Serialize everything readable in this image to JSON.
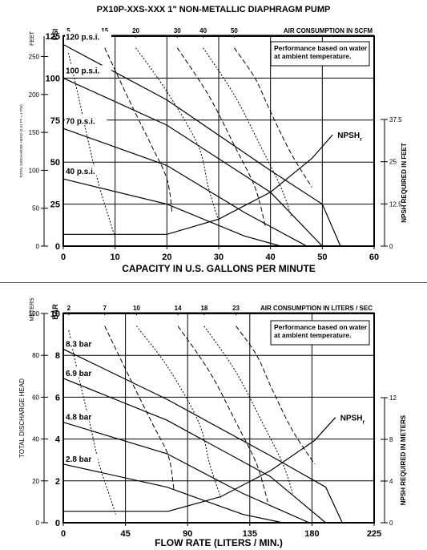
{
  "title": "PX10P-XXS-XXX   1\" NON-METALLIC DIAPHRAGM PUMP",
  "colors": {
    "ink": "#000000",
    "paper": "#ffffff"
  },
  "chart_data": [
    {
      "type": "line",
      "units": "US",
      "x_label": "CAPACITY IN U.S. GALLONS PER MINUTE",
      "x_range": [
        0,
        60
      ],
      "x_ticks": [
        "0",
        "10",
        "20",
        "30",
        "40",
        "50",
        "60"
      ],
      "left_outer_unit": "FEET",
      "left_outer_range": [
        0,
        277
      ],
      "left_outer_ticks": [
        "0",
        "50",
        "100",
        "150",
        "200",
        "250"
      ],
      "left_inner_unit": "PSI",
      "left_inner_range": [
        0,
        125
      ],
      "left_inner_ticks": [
        "0",
        "25",
        "50",
        "75",
        "100",
        "125"
      ],
      "left_axis_label": "TOTAL DISCHARGE HEAD (2.31 FT = 1 PSI)",
      "right_label": "NPSH REQUIRED IN FEET",
      "right_range": [
        0,
        37.5
      ],
      "right_ticks": [
        "0",
        "12.5",
        "25",
        "37.5"
      ],
      "air_label": "AIR CONSUMPTION IN SCFM",
      "air_ticks": [
        "5",
        "15",
        "20",
        "30",
        "40",
        "50"
      ],
      "note": [
        "Performance based on water",
        "at ambient temperature."
      ],
      "npsh_label": "NPSH",
      "npsh_sub": "r",
      "series": [
        {
          "name": "120 p.s.i.",
          "points": [
            [
              0,
              120
            ],
            [
              20,
              87
            ],
            [
              40,
              45
            ],
            [
              50,
              25
            ],
            [
              53.5,
              0
            ]
          ]
        },
        {
          "name": "100 p.s.i.",
          "points": [
            [
              0,
              100
            ],
            [
              20,
              72
            ],
            [
              40,
              32
            ],
            [
              50,
              0
            ]
          ]
        },
        {
          "name": "70 p.s.i.",
          "points": [
            [
              0,
              70
            ],
            [
              20,
              48
            ],
            [
              35,
              20
            ],
            [
              47,
              0
            ]
          ]
        },
        {
          "name": "40 p.s.i.",
          "points": [
            [
              0,
              40
            ],
            [
              20,
              25
            ],
            [
              35,
              6
            ],
            [
              42,
              0
            ]
          ]
        }
      ],
      "npsh_curve": [
        [
          0,
          3.5
        ],
        [
          10,
          3.5
        ],
        [
          20,
          3.5
        ],
        [
          30,
          8
        ],
        [
          40,
          16
        ],
        [
          48,
          26
        ],
        [
          52,
          33
        ]
      ],
      "air_curves": [
        {
          "label": "5",
          "points": [
            [
              1,
              115
            ],
            [
              3,
              88
            ],
            [
              5,
              60
            ],
            [
              7,
              35
            ],
            [
              9,
              15
            ],
            [
              10,
              5
            ]
          ]
        },
        {
          "label": "15",
          "points": [
            [
              8,
              118
            ],
            [
              13,
              85
            ],
            [
              17,
              60
            ],
            [
              20,
              40
            ],
            [
              21,
              20
            ]
          ]
        },
        {
          "label": "20",
          "points": [
            [
              14,
              118
            ],
            [
              20,
              92
            ],
            [
              26,
              60
            ],
            [
              28,
              35
            ],
            [
              30,
              15
            ]
          ]
        },
        {
          "label": "30",
          "points": [
            [
              22,
              118
            ],
            [
              28,
              90
            ],
            [
              33,
              60
            ],
            [
              37,
              35
            ],
            [
              39,
              12
            ]
          ]
        },
        {
          "label": "40",
          "points": [
            [
              27,
              118
            ],
            [
              33,
              90
            ],
            [
              38,
              60
            ],
            [
              42,
              35
            ],
            [
              44,
              18
            ]
          ]
        },
        {
          "label": "50",
          "points": [
            [
              33,
              118
            ],
            [
              37,
              100
            ],
            [
              40,
              80
            ],
            [
              44,
              55
            ],
            [
              48,
              35
            ]
          ]
        }
      ]
    },
    {
      "type": "line",
      "units": "metric",
      "x_label": "FLOW RATE (LITERS / MIN.)",
      "x_range": [
        0,
        225
      ],
      "x_ticks": [
        "0",
        "45",
        "90",
        "135",
        "180",
        "225"
      ],
      "left_outer_unit": "METERS",
      "left_outer_range": [
        0,
        100
      ],
      "left_outer_ticks": [
        "0",
        "20",
        "40",
        "60",
        "80",
        "100"
      ],
      "left_inner_unit": "BAR",
      "left_inner_range": [
        0,
        10
      ],
      "left_inner_ticks": [
        "0",
        "2",
        "4",
        "6",
        "8",
        "10"
      ],
      "left_axis_label": "TOTAL DISCHARGE HEAD",
      "right_label": "NPSH REQUIRED IN METERS",
      "right_range": [
        0,
        12
      ],
      "right_ticks": [
        "0",
        "4",
        "8",
        "12"
      ],
      "air_label": "AIR CONSUMPTION IN LITERS / SEC",
      "air_ticks": [
        "2",
        "7",
        "10",
        "14",
        "18",
        "23"
      ],
      "note": [
        "Performance based on water",
        "at ambient temperature."
      ],
      "npsh_label": "NPSH",
      "npsh_sub": "r",
      "series": [
        {
          "name": "8.3 bar",
          "points": [
            [
              0,
              8.3
            ],
            [
              75,
              5.9
            ],
            [
              150,
              3.2
            ],
            [
              190,
              1.7
            ],
            [
              202,
              0
            ]
          ]
        },
        {
          "name": "6.9 bar",
          "points": [
            [
              0,
              6.9
            ],
            [
              75,
              4.9
            ],
            [
              150,
              2.2
            ],
            [
              190,
              0
            ]
          ]
        },
        {
          "name": "4.8 bar",
          "points": [
            [
              0,
              4.8
            ],
            [
              75,
              3.3
            ],
            [
              130,
              1.4
            ],
            [
              178,
              0
            ]
          ]
        },
        {
          "name": "2.8 bar",
          "points": [
            [
              0,
              2.8
            ],
            [
              75,
              1.7
            ],
            [
              130,
              0.4
            ],
            [
              159,
              0
            ]
          ]
        }
      ],
      "npsh_curve": [
        [
          0,
          1.1
        ],
        [
          38,
          1.1
        ],
        [
          76,
          1.1
        ],
        [
          114,
          2.5
        ],
        [
          150,
          5.0
        ],
        [
          182,
          7.9
        ],
        [
          197,
          10.1
        ]
      ],
      "air_curves": [
        {
          "label": "2",
          "points": [
            [
              4,
              9.2
            ],
            [
              11,
              7.0
            ],
            [
              19,
              4.8
            ],
            [
              26,
              2.8
            ],
            [
              34,
              1.2
            ],
            [
              38,
              0.4
            ]
          ]
        },
        {
          "label": "7",
          "points": [
            [
              30,
              9.4
            ],
            [
              49,
              6.8
            ],
            [
              64,
              4.8
            ],
            [
              76,
              3.2
            ],
            [
              80,
              1.6
            ]
          ]
        },
        {
          "label": "10",
          "points": [
            [
              53,
              9.4
            ],
            [
              76,
              7.4
            ],
            [
              98,
              4.8
            ],
            [
              106,
              2.8
            ],
            [
              114,
              1.2
            ]
          ]
        },
        {
          "label": "14",
          "points": [
            [
              83,
              9.4
            ],
            [
              106,
              7.2
            ],
            [
              125,
              4.8
            ],
            [
              140,
              2.8
            ],
            [
              148,
              1.0
            ]
          ]
        },
        {
          "label": "18",
          "points": [
            [
              102,
              9.4
            ],
            [
              125,
              7.2
            ],
            [
              144,
              4.8
            ],
            [
              159,
              2.8
            ],
            [
              166,
              1.4
            ]
          ]
        },
        {
          "label": "23",
          "points": [
            [
              125,
              9.4
            ],
            [
              140,
              8.0
            ],
            [
              151,
              6.4
            ],
            [
              166,
              4.4
            ],
            [
              182,
              2.8
            ]
          ]
        }
      ]
    }
  ]
}
